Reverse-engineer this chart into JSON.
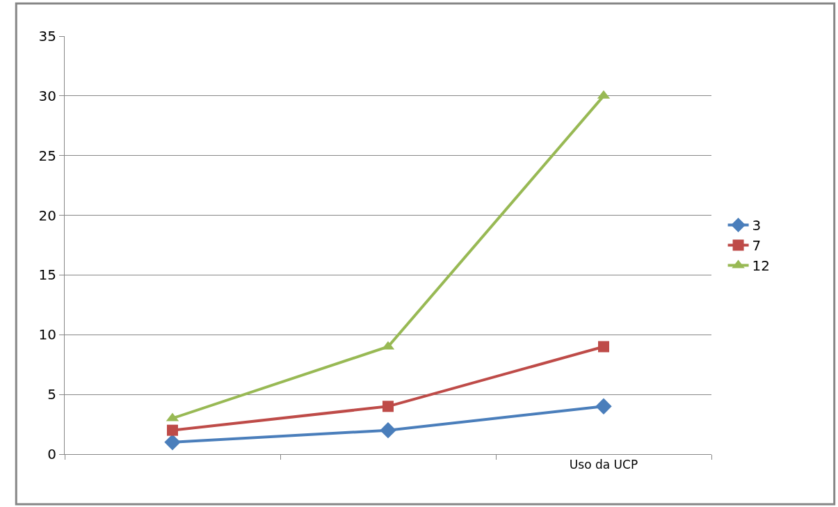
{
  "chart_data": {
    "type": "line",
    "categories": [
      null,
      null,
      "Uso da UCP"
    ],
    "series": [
      {
        "name": "3",
        "color": "#4a7ebb",
        "marker": "diamond",
        "values": [
          1,
          2,
          4
        ]
      },
      {
        "name": "7",
        "color": "#be4b48",
        "marker": "square",
        "values": [
          2,
          4,
          9
        ]
      },
      {
        "name": "12",
        "color": "#98b954",
        "marker": "triangle",
        "values": [
          3,
          9,
          30
        ]
      }
    ],
    "ylim": [
      0,
      35
    ],
    "yticks": [
      0,
      5,
      10,
      15,
      20,
      25,
      30,
      35
    ],
    "grid": "y",
    "legend": "right"
  }
}
